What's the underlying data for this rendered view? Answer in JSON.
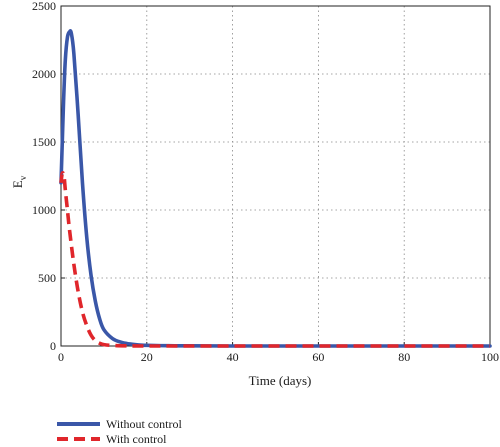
{
  "chart_data": {
    "type": "line",
    "xlabel": "Time (days)",
    "ylabel": "E",
    "ylabel_sub": "v",
    "xlim": [
      0,
      100
    ],
    "ylim": [
      0,
      2500
    ],
    "xticks": [
      0,
      20,
      40,
      60,
      80,
      100
    ],
    "yticks": [
      0,
      500,
      1000,
      1500,
      2000,
      2500
    ],
    "grid": true,
    "legend_position": "below plot, left",
    "series": [
      {
        "name": "Without control",
        "color": "#3a57a8",
        "style": "solid",
        "x": [
          0,
          0.3,
          0.6,
          1,
          1.5,
          2,
          2.4,
          3,
          4,
          5,
          6,
          7,
          8,
          9,
          10,
          12,
          14,
          16,
          18,
          20,
          25,
          30,
          40,
          60,
          80,
          100
        ],
        "y": [
          1200,
          1500,
          1800,
          2100,
          2270,
          2310,
          2300,
          2150,
          1700,
          1200,
          800,
          520,
          330,
          200,
          120,
          55,
          28,
          15,
          8,
          5,
          2,
          1,
          0,
          0,
          0,
          0
        ]
      },
      {
        "name": "With control",
        "color": "#e0262b",
        "style": "dashed",
        "x": [
          0,
          0.3,
          0.7,
          1,
          1.5,
          2,
          3,
          4,
          5,
          6,
          7,
          8,
          9,
          10,
          12,
          15,
          20,
          40,
          60,
          80,
          100
        ],
        "y": [
          1200,
          1270,
          1250,
          1150,
          1000,
          850,
          600,
          400,
          250,
          150,
          80,
          40,
          20,
          10,
          4,
          1,
          0,
          0,
          0,
          0,
          0
        ]
      }
    ]
  }
}
